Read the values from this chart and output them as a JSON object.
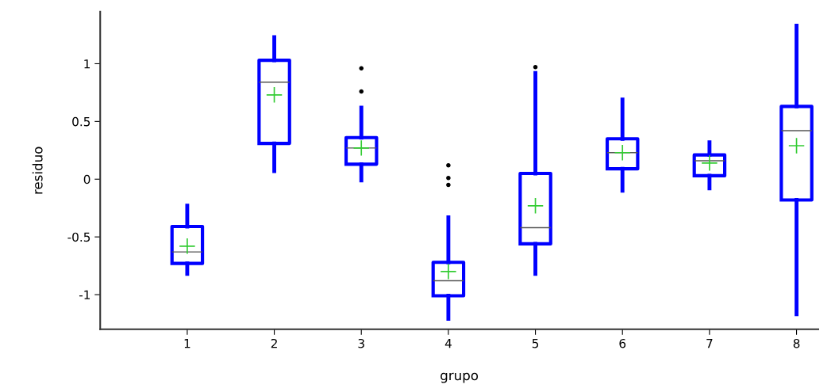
{
  "chart_data": {
    "type": "box",
    "xlabel": "grupo",
    "ylabel": "residuo",
    "categories": [
      "1",
      "2",
      "3",
      "4",
      "5",
      "6",
      "7",
      "8"
    ],
    "series": [
      {
        "color": "#0000ff",
        "boxes": [
          {
            "low": -0.82,
            "q1": -0.73,
            "median": -0.63,
            "q3": -0.41,
            "high": -0.23,
            "mean": -0.58
          },
          {
            "low": 0.07,
            "q1": 0.31,
            "median": 0.84,
            "q3": 1.03,
            "high": 1.23,
            "mean": 0.73
          },
          {
            "low": -0.01,
            "q1": 0.13,
            "median": 0.27,
            "q3": 0.36,
            "high": 0.62,
            "mean": 0.27,
            "outliers": [
              0.96,
              0.76
            ]
          },
          {
            "low": -1.21,
            "q1": -1.01,
            "median": -0.88,
            "q3": -0.72,
            "high": -0.33,
            "mean": -0.8,
            "outliers": [
              0.12,
              0.01,
              -0.05
            ]
          },
          {
            "low": -0.82,
            "q1": -0.56,
            "median": -0.42,
            "q3": 0.05,
            "high": 0.92,
            "mean": -0.23,
            "outliers": [
              0.97
            ]
          },
          {
            "low": -0.1,
            "q1": 0.09,
            "median": 0.23,
            "q3": 0.35,
            "high": 0.69,
            "mean": 0.23
          },
          {
            "low": -0.08,
            "q1": 0.03,
            "median": 0.16,
            "q3": 0.21,
            "high": 0.32,
            "mean": 0.14
          },
          {
            "low": -1.17,
            "q1": -0.18,
            "median": 0.42,
            "q3": 0.63,
            "high": 1.33,
            "mean": 0.29
          }
        ]
      }
    ],
    "ylim": [
      -1.3,
      1.45
    ],
    "yticks": [
      -1,
      -0.5,
      0,
      0.5,
      1
    ],
    "grid": false
  }
}
